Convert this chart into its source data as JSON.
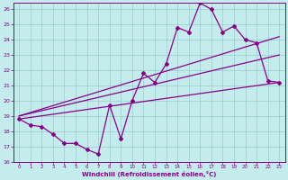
{
  "xlabel": "Windchill (Refroidissement éolien,°C)",
  "xlim": [
    -0.5,
    23.5
  ],
  "ylim": [
    16,
    26.4
  ],
  "yticks": [
    16,
    17,
    18,
    19,
    20,
    21,
    22,
    23,
    24,
    25,
    26
  ],
  "xticks": [
    0,
    1,
    2,
    3,
    4,
    5,
    6,
    7,
    8,
    9,
    10,
    11,
    12,
    13,
    14,
    15,
    16,
    17,
    18,
    19,
    20,
    21,
    22,
    23
  ],
  "bg_color": "#c4eced",
  "line_color": "#880088",
  "grid_color": "#99cccc",
  "line1_x": [
    0,
    1,
    2,
    3,
    4,
    5,
    6,
    7,
    8,
    9,
    10,
    11,
    12,
    13,
    14,
    15,
    16,
    17,
    18,
    19,
    20,
    21,
    22,
    23
  ],
  "line1_y": [
    18.8,
    18.4,
    18.3,
    17.8,
    17.2,
    17.2,
    16.8,
    16.5,
    19.7,
    17.5,
    20.0,
    21.8,
    21.2,
    22.4,
    24.8,
    24.5,
    26.4,
    26.0,
    24.5,
    24.9,
    24.0,
    23.8,
    21.3,
    21.2
  ],
  "line2_x": [
    0,
    23
  ],
  "line2_y": [
    19.0,
    24.2
  ],
  "line3_x": [
    0,
    23
  ],
  "line3_y": [
    19.0,
    23.0
  ],
  "line4_x": [
    0,
    23
  ],
  "line4_y": [
    18.8,
    21.2
  ]
}
